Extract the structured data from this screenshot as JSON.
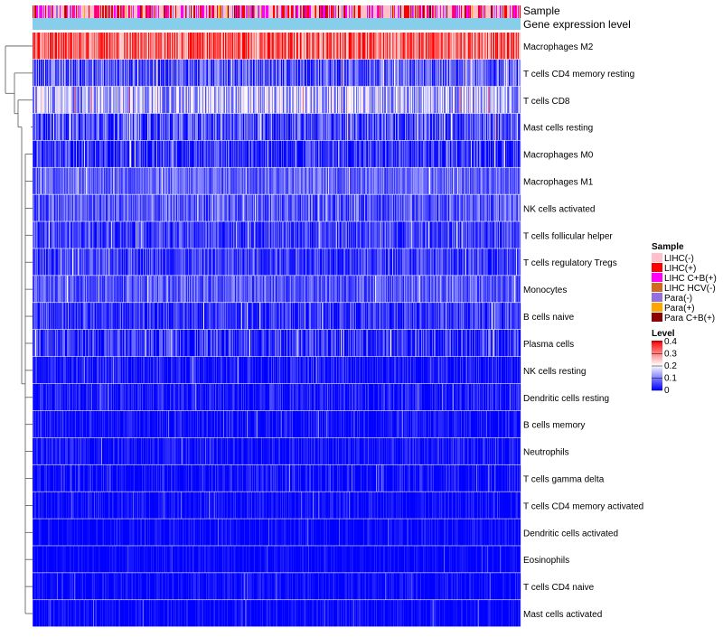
{
  "chart_data": {
    "type": "heatmap",
    "title": "",
    "annotation_tracks": [
      "Sample",
      "Gene expression level"
    ],
    "rows": [
      {
        "name": "Macrophages M2",
        "mean": 0.32,
        "spread": 0.09
      },
      {
        "name": "T cells CD4 memory resting",
        "mean": 0.07,
        "spread": 0.07
      },
      {
        "name": "T cells CD8",
        "mean": 0.14,
        "spread": 0.09
      },
      {
        "name": "Mast cells resting",
        "mean": 0.06,
        "spread": 0.07
      },
      {
        "name": "Macrophages M0",
        "mean": 0.04,
        "spread": 0.06
      },
      {
        "name": "Macrophages M1",
        "mean": 0.08,
        "spread": 0.05
      },
      {
        "name": "NK cells activated",
        "mean": 0.07,
        "spread": 0.06
      },
      {
        "name": "T cells follicular helper",
        "mean": 0.05,
        "spread": 0.05
      },
      {
        "name": "T cells regulatory  Tregs",
        "mean": 0.05,
        "spread": 0.05
      },
      {
        "name": "Monocytes",
        "mean": 0.07,
        "spread": 0.05
      },
      {
        "name": "B cells naive",
        "mean": 0.04,
        "spread": 0.05
      },
      {
        "name": "Plasma cells",
        "mean": 0.04,
        "spread": 0.06
      },
      {
        "name": "NK cells resting",
        "mean": 0.02,
        "spread": 0.04
      },
      {
        "name": "Dendritic cells resting",
        "mean": 0.02,
        "spread": 0.04
      },
      {
        "name": "B cells memory",
        "mean": 0.015,
        "spread": 0.035
      },
      {
        "name": "Neutrophils",
        "mean": 0.015,
        "spread": 0.035
      },
      {
        "name": "T cells gamma delta",
        "mean": 0.01,
        "spread": 0.04
      },
      {
        "name": "T cells CD4 memory activated",
        "mean": 0.01,
        "spread": 0.03
      },
      {
        "name": "Dendritic cells activated",
        "mean": 0.005,
        "spread": 0.03
      },
      {
        "name": "Eosinophils",
        "mean": 0.004,
        "spread": 0.025
      },
      {
        "name": "T cells CD4 naive",
        "mean": 0.005,
        "spread": 0.03
      },
      {
        "name": "Mast cells activated",
        "mean": 0.005,
        "spread": 0.03
      }
    ],
    "n_samples": 540,
    "gene_expression_track_color": "#87CEEB",
    "legend": {
      "sample_title": "Sample",
      "sample_entries": [
        {
          "label": "LIHC(-)",
          "color": "#FFC0CB"
        },
        {
          "label": "LIHC(+)",
          "color": "#FF0000"
        },
        {
          "label": "LIHC C+B(+)",
          "color": "#FF00FF"
        },
        {
          "label": "LIHC HCV(-)",
          "color": "#D2691E"
        },
        {
          "label": "Para(-)",
          "color": "#9370DB"
        },
        {
          "label": "Para(+)",
          "color": "#FFA500"
        },
        {
          "label": "Para C+B(+)",
          "color": "#8B0000"
        }
      ],
      "level_title": "Level",
      "level_ticks": [
        "0.4",
        "0.3",
        "0.2",
        "0.1",
        "0"
      ],
      "level_min": 0,
      "level_max": 0.4,
      "gradient_colors": [
        "#0000FF",
        "#FFFFFF",
        "#FF0000"
      ]
    }
  }
}
